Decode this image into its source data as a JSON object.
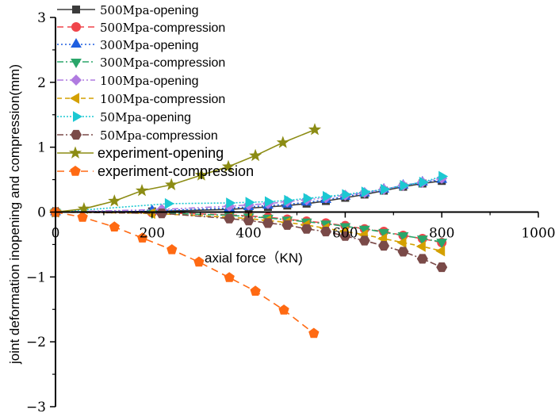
{
  "chart_data": {
    "type": "line",
    "title": "",
    "xlabel": "axial force（KN)",
    "ylabel": "joint deformation inopening and compression(mm)",
    "xlim": [
      0,
      1000
    ],
    "ylim": [
      -3,
      3
    ],
    "xticks": [
      0,
      200,
      400,
      600,
      800,
      1000
    ],
    "yticks": [
      -3,
      -2,
      -1,
      0,
      1,
      2,
      3
    ],
    "legend_position": "top-left",
    "series": [
      {
        "name": "500Mpa-opening",
        "prefix": "500Mpa-",
        "suffix": "opening",
        "color": "#3b3b3b",
        "marker": "square",
        "dash": "",
        "x": [
          0,
          200,
          360,
          400,
          440,
          480,
          520,
          560,
          600,
          640,
          680,
          720,
          760,
          800
        ],
        "y": [
          0,
          0.01,
          0.04,
          0.06,
          0.08,
          0.1,
          0.13,
          0.17,
          0.22,
          0.27,
          0.33,
          0.39,
          0.44,
          0.48
        ]
      },
      {
        "name": "500Mpa-compression",
        "prefix": "500Mpa-",
        "suffix": "compression",
        "color": "#f0454b",
        "marker": "circle",
        "dash": "8,5",
        "x": [
          0,
          200,
          360,
          400,
          440,
          480,
          520,
          560,
          600,
          640,
          680,
          720,
          760,
          800
        ],
        "y": [
          0,
          -0.01,
          -0.04,
          -0.06,
          -0.08,
          -0.11,
          -0.14,
          -0.17,
          -0.21,
          -0.26,
          -0.3,
          -0.36,
          -0.41,
          -0.47
        ]
      },
      {
        "name": "300Mpa-opening",
        "prefix": "300Mpa-",
        "suffix": "opening",
        "color": "#1f5fe0",
        "marker": "triangle-up",
        "dash": "2,3",
        "x": [
          0,
          200,
          360,
          400,
          440,
          480,
          520,
          560,
          600,
          640,
          680,
          720,
          760,
          800
        ],
        "y": [
          0,
          0.02,
          0.06,
          0.08,
          0.1,
          0.12,
          0.15,
          0.19,
          0.24,
          0.29,
          0.35,
          0.41,
          0.46,
          0.5
        ]
      },
      {
        "name": "300Mpa-compression",
        "prefix": "300Mpa-",
        "suffix": "compression",
        "color": "#2aa66a",
        "marker": "triangle-down",
        "dash": "8,3,2,3",
        "x": [
          0,
          200,
          360,
          400,
          440,
          480,
          520,
          560,
          600,
          640,
          680,
          720,
          760,
          800
        ],
        "y": [
          0,
          -0.01,
          -0.05,
          -0.07,
          -0.09,
          -0.12,
          -0.15,
          -0.18,
          -0.22,
          -0.26,
          -0.31,
          -0.36,
          -0.41,
          -0.46
        ]
      },
      {
        "name": "100Mpa-opening",
        "prefix": "100Mpa-",
        "suffix": "opening",
        "color": "#b07be0",
        "marker": "diamond",
        "dash": "8,3,2,3,2,3",
        "x": [
          0,
          220,
          360,
          400,
          440,
          480,
          520,
          560,
          600,
          640,
          680,
          720,
          760,
          800
        ],
        "y": [
          0,
          0.04,
          0.09,
          0.11,
          0.13,
          0.16,
          0.19,
          0.22,
          0.26,
          0.3,
          0.35,
          0.41,
          0.46,
          0.52
        ]
      },
      {
        "name": "100Mpa-compression",
        "prefix": "100Mpa-",
        "suffix": "compression",
        "color": "#d4a000",
        "marker": "triangle-left",
        "dash": "6,4",
        "x": [
          0,
          200,
          360,
          400,
          440,
          480,
          520,
          560,
          600,
          640,
          680,
          720,
          760,
          800
        ],
        "y": [
          0,
          -0.02,
          -0.08,
          -0.1,
          -0.13,
          -0.16,
          -0.2,
          -0.25,
          -0.3,
          -0.35,
          -0.41,
          -0.47,
          -0.53,
          -0.6
        ]
      },
      {
        "name": "50Mpa-opening",
        "prefix": "50Mpa-",
        "suffix": "opening",
        "color": "#1cc8d2",
        "marker": "triangle-right",
        "dash": "2,2",
        "x": [
          0,
          233,
          360,
          400,
          440,
          480,
          520,
          560,
          600,
          640,
          680,
          720,
          760,
          800
        ],
        "y": [
          0,
          0.13,
          0.14,
          0.15,
          0.16,
          0.18,
          0.21,
          0.24,
          0.27,
          0.31,
          0.35,
          0.41,
          0.46,
          0.55
        ]
      },
      {
        "name": "50Mpa-compression",
        "prefix": "50Mpa-",
        "suffix": "compression",
        "color": "#7a4a48",
        "marker": "hexagon",
        "dash": "8,3,2,3",
        "x": [
          0,
          220,
          360,
          400,
          440,
          480,
          520,
          560,
          600,
          640,
          680,
          720,
          760,
          800
        ],
        "y": [
          0,
          -0.02,
          -0.1,
          -0.13,
          -0.17,
          -0.2,
          -0.26,
          -0.3,
          -0.37,
          -0.44,
          -0.52,
          -0.61,
          -0.72,
          -0.85
        ]
      },
      {
        "name": "experiment-opening",
        "prefix": "",
        "suffix": "experiment-opening",
        "color": "#8c8c14",
        "marker": "star",
        "dash": "",
        "x": [
          0,
          59,
          122,
          179,
          240,
          302,
          358,
          414,
          471,
          537
        ],
        "y": [
          0,
          0.05,
          0.17,
          0.33,
          0.42,
          0.57,
          0.7,
          0.87,
          1.07,
          1.27
        ]
      },
      {
        "name": "experiment-compression",
        "prefix": "",
        "suffix": "experiment-compression",
        "color": "#ff6a13",
        "marker": "pentagon",
        "dash": "9,6",
        "x": [
          0,
          56,
          122,
          180,
          241,
          297,
          360,
          414,
          473,
          535
        ],
        "y": [
          0,
          -0.08,
          -0.23,
          -0.4,
          -0.58,
          -0.77,
          -1.01,
          -1.22,
          -1.51,
          -1.87
        ]
      }
    ]
  }
}
